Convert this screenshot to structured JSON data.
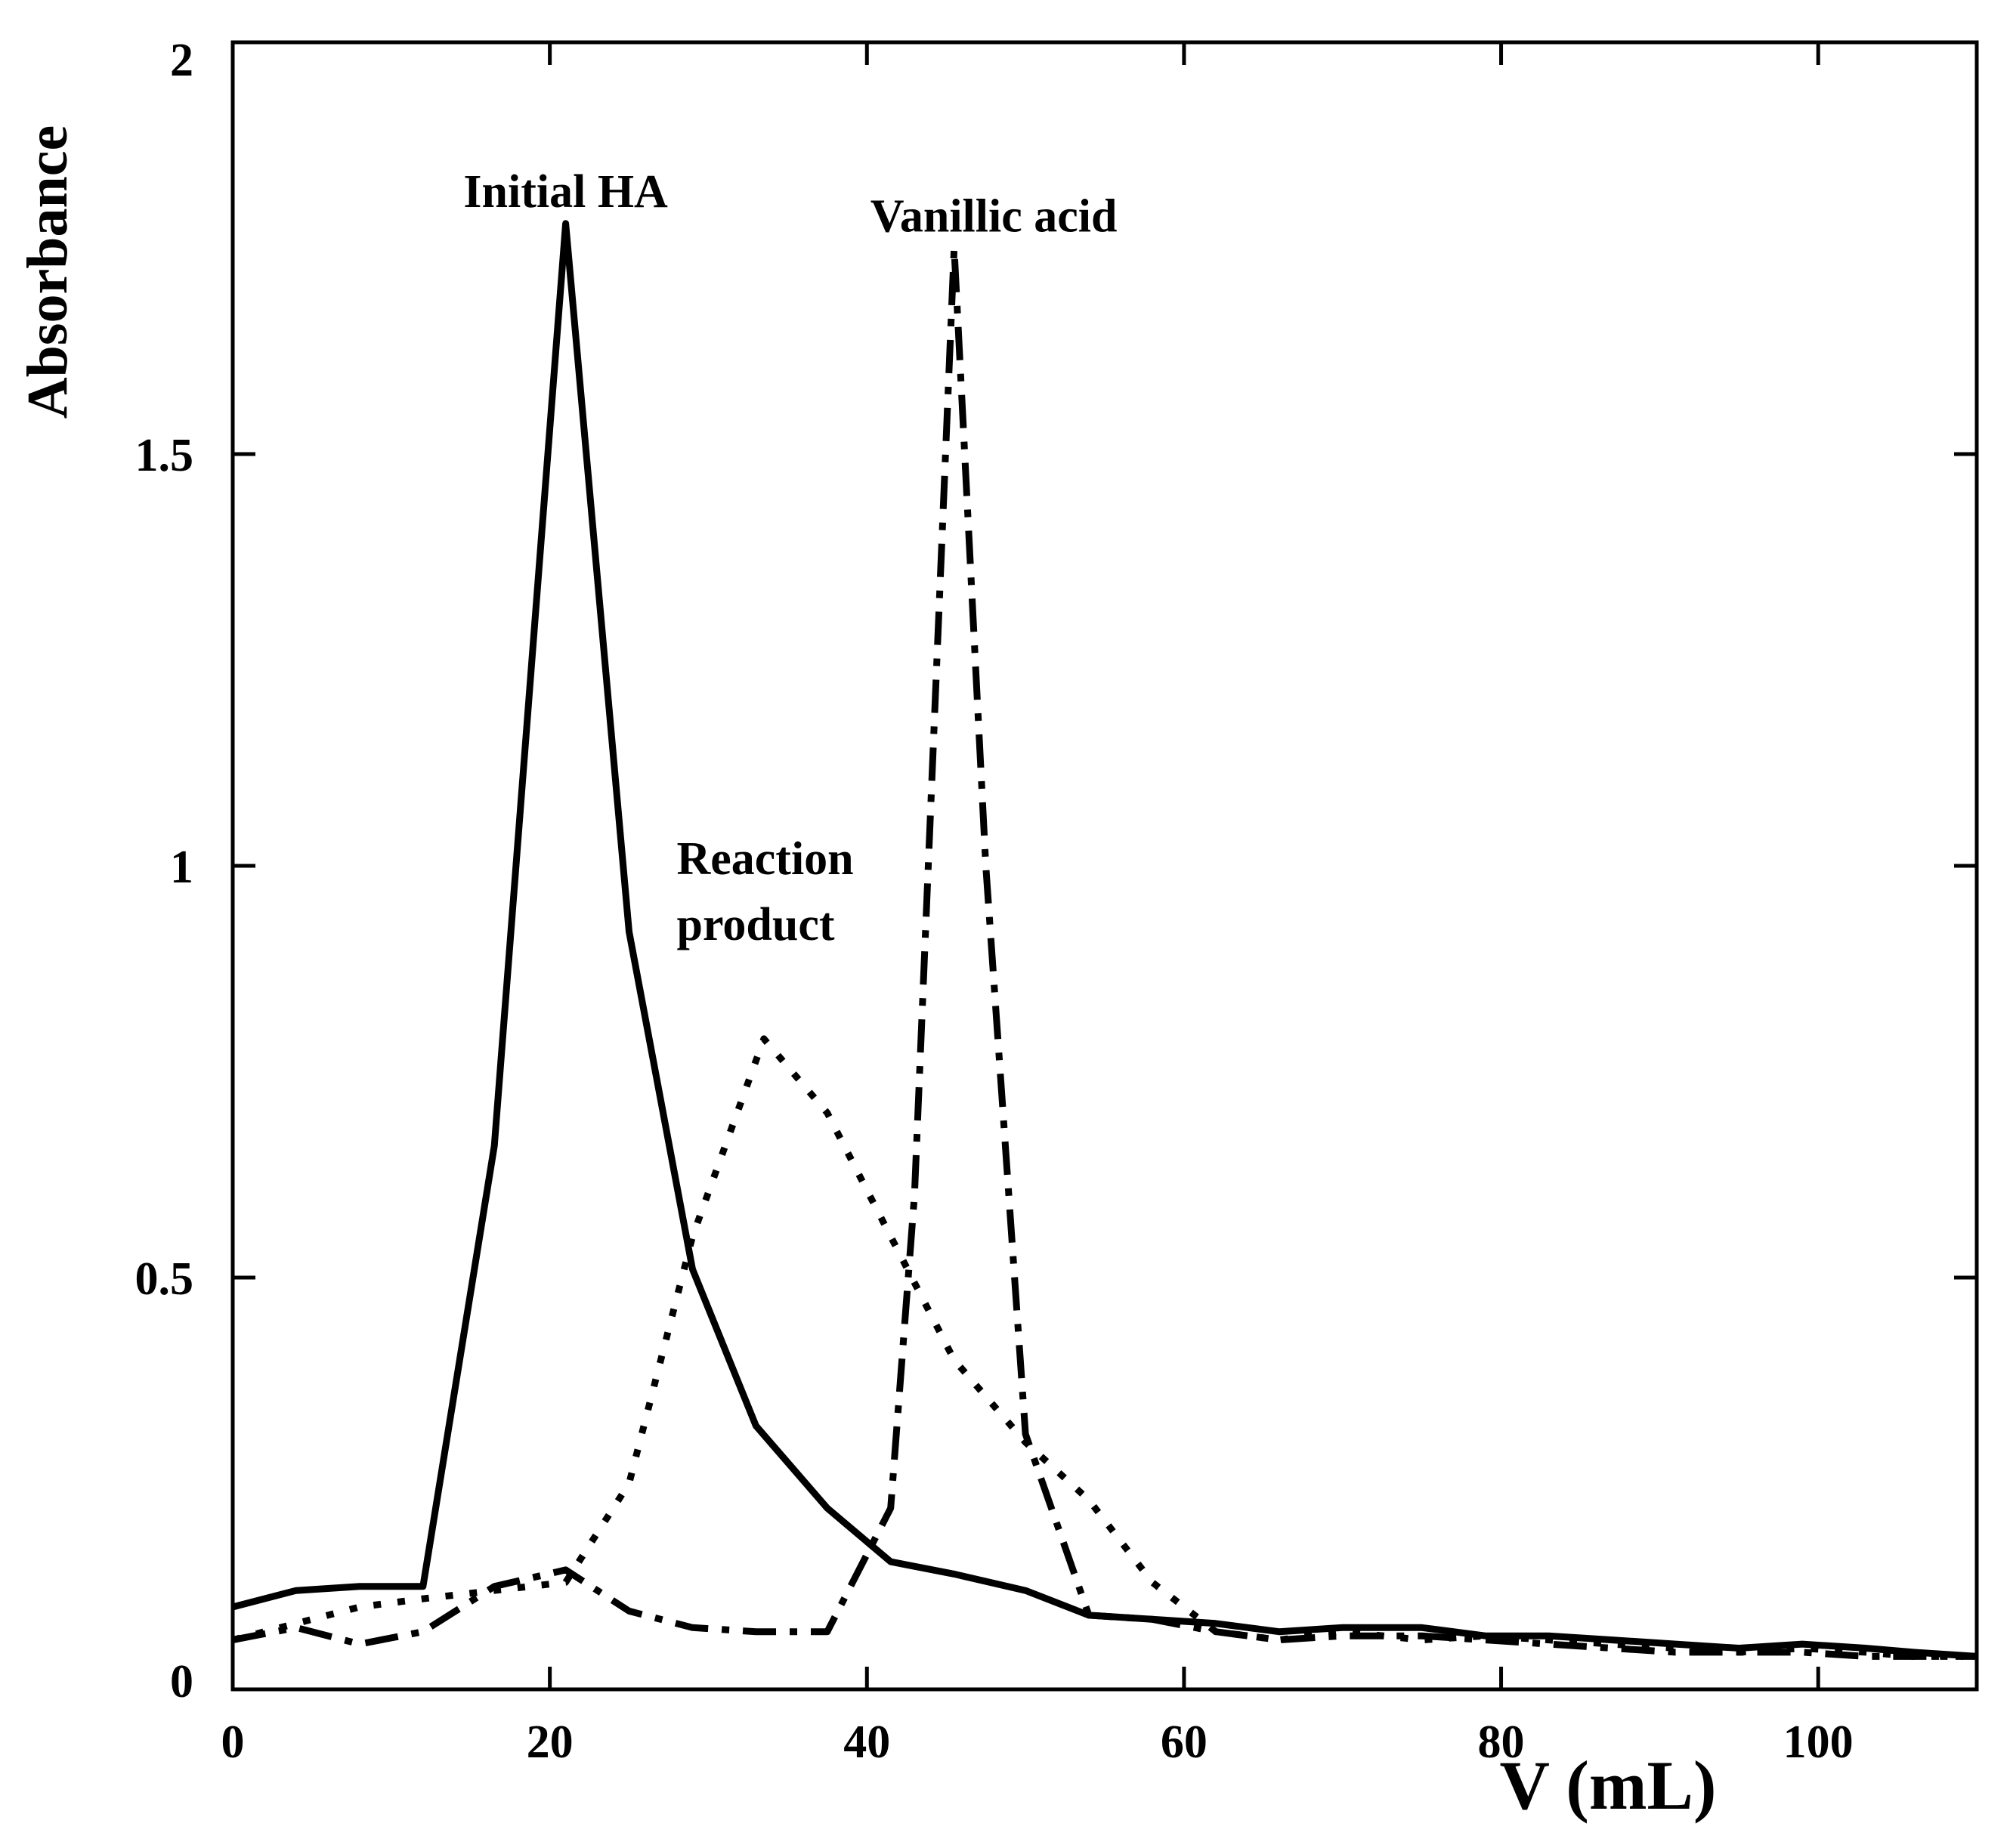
{
  "chart_data": {
    "type": "line",
    "title": "",
    "xlabel": "V (mL)",
    "ylabel": "Absorbance",
    "xlim": [
      0,
      110
    ],
    "ylim": [
      0,
      2
    ],
    "xticks": [
      0,
      20,
      40,
      60,
      80,
      100
    ],
    "yticks": [
      0,
      0.5,
      1,
      1.5,
      2
    ],
    "xtick_labels": [
      "0",
      "20",
      "40",
      "60",
      "80",
      "100"
    ],
    "ytick_labels": [
      "0",
      "0.5",
      "1",
      "1.5",
      "2"
    ],
    "grid": false,
    "series": [
      {
        "name": "Initial HA",
        "style": "solid",
        "x": [
          0,
          4,
          8,
          12,
          16.5,
          21,
          25,
          29,
          33,
          37.5,
          41.5,
          45.5,
          50,
          54,
          58,
          62,
          66,
          70,
          75,
          79,
          83,
          87,
          91,
          95,
          99,
          103,
          106,
          110
        ],
        "y": [
          0.1,
          0.12,
          0.125,
          0.125,
          0.66,
          1.78,
          0.92,
          0.51,
          0.32,
          0.22,
          0.155,
          0.14,
          0.12,
          0.09,
          0.085,
          0.08,
          0.07,
          0.075,
          0.075,
          0.065,
          0.065,
          0.06,
          0.055,
          0.05,
          0.055,
          0.05,
          0.045,
          0.04
        ]
      },
      {
        "name": "Reaction product",
        "style": "dotted",
        "x": [
          0,
          4,
          8,
          12,
          16.5,
          21,
          25,
          29,
          33.5,
          37.5,
          41.5,
          45.5,
          50,
          54,
          58,
          62,
          66,
          70,
          75,
          79,
          83,
          87,
          91,
          95,
          99,
          103,
          106,
          110
        ],
        "y": [
          0.06,
          0.08,
          0.1,
          0.11,
          0.12,
          0.13,
          0.25,
          0.55,
          0.79,
          0.7,
          0.55,
          0.4,
          0.3,
          0.23,
          0.13,
          0.07,
          0.06,
          0.07,
          0.06,
          0.065,
          0.06,
          0.055,
          0.05,
          0.045,
          0.05,
          0.045,
          0.04,
          0.04
        ]
      },
      {
        "name": "Vanillic acid",
        "style": "dash-dot",
        "x": [
          0,
          4,
          8,
          12,
          16.5,
          21,
          25,
          29,
          33,
          37.5,
          41.5,
          43,
          45.5,
          47.5,
          50,
          54,
          58,
          62,
          66,
          70,
          75,
          79,
          83,
          87,
          91,
          95,
          99,
          103,
          106,
          110
        ],
        "y": [
          0.06,
          0.075,
          0.055,
          0.07,
          0.125,
          0.145,
          0.095,
          0.075,
          0.07,
          0.07,
          0.22,
          0.6,
          1.75,
          1.0,
          0.31,
          0.09,
          0.085,
          0.07,
          0.06,
          0.065,
          0.065,
          0.06,
          0.055,
          0.05,
          0.045,
          0.045,
          0.045,
          0.04,
          0.04,
          0.04
        ]
      }
    ],
    "annotations": [
      {
        "text": "Initial HA",
        "x": 21,
        "y": 1.8
      },
      {
        "text": "Vanillic acid",
        "x": 48,
        "y": 1.77
      },
      {
        "text": "Reaction",
        "x": 28,
        "y": 0.99
      },
      {
        "text": "product",
        "x": 28,
        "y": 0.91
      }
    ]
  }
}
